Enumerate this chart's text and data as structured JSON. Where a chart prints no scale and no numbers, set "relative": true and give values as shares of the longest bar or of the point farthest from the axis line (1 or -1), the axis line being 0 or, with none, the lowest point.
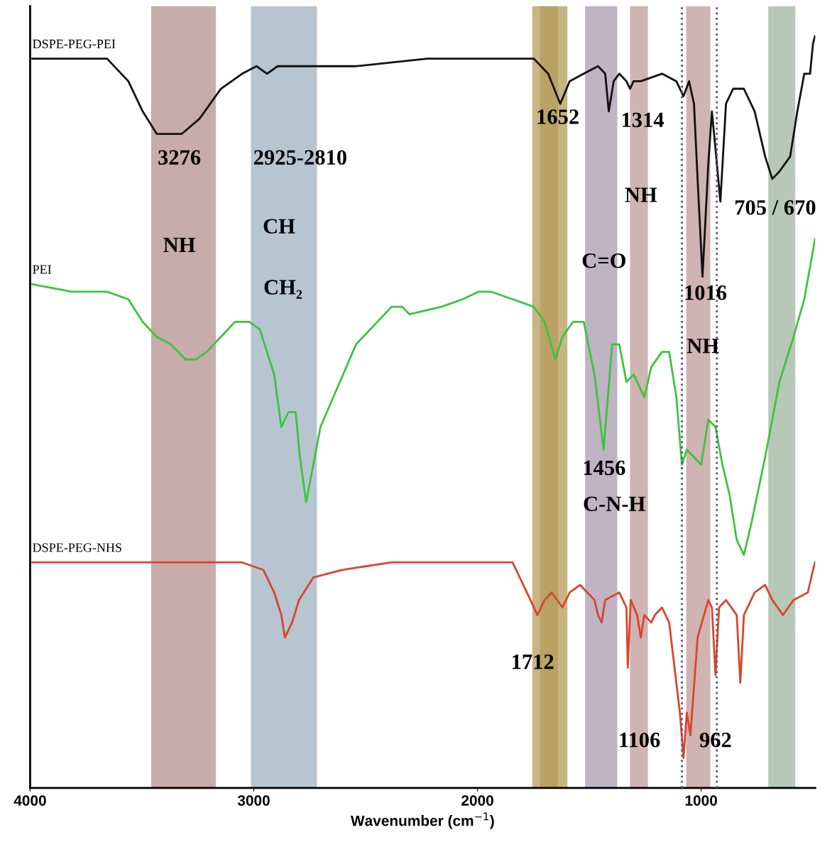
{
  "chart_data": {
    "type": "line",
    "relative": true,
    "xlabel": "Wavenumber (cm$^{−1}$)",
    "xlim": [
      4000,
      490
    ],
    "xticks": [
      4000,
      3000,
      2000,
      1000
    ],
    "grid": false,
    "legend": false,
    "marker": "none",
    "line_style": "solid",
    "series": [
      {
        "name": "DSPE-PEG-PEI",
        "color": "#111111",
        "x": [
          3990,
          3815,
          3656,
          3561,
          3497,
          3434,
          3386,
          3322,
          3243,
          3147,
          3052,
          2988,
          2941,
          2893,
          2798,
          2702,
          2543,
          2225,
          2034,
          1996,
          1907,
          1748,
          1684,
          1630,
          1588,
          1525,
          1461,
          1429,
          1413,
          1391,
          1366,
          1334,
          1318,
          1302,
          1270,
          1175,
          1111,
          1079,
          1054,
          1032,
          1016,
          994,
          968,
          952,
          936,
          914,
          889,
          857,
          809,
          761,
          714,
          682,
          650,
          602,
          570,
          539,
          513,
          500,
          491
        ],
        "values": [
          0.97,
          0.97,
          0.97,
          0.94,
          0.9,
          0.87,
          0.87,
          0.87,
          0.89,
          0.93,
          0.95,
          0.96,
          0.95,
          0.96,
          0.96,
          0.96,
          0.96,
          0.97,
          0.97,
          0.97,
          0.97,
          0.97,
          0.95,
          0.91,
          0.94,
          0.95,
          0.96,
          0.95,
          0.9,
          0.94,
          0.95,
          0.94,
          0.93,
          0.94,
          0.94,
          0.95,
          0.94,
          0.92,
          0.94,
          0.91,
          0.81,
          0.68,
          0.83,
          0.9,
          0.85,
          0.78,
          0.91,
          0.93,
          0.93,
          0.9,
          0.84,
          0.81,
          0.82,
          0.84,
          0.9,
          0.95,
          0.95,
          0.99,
          1.0
        ]
      },
      {
        "name": "PEI",
        "color": "#3ec23e",
        "x": [
          3990,
          3815,
          3723,
          3656,
          3561,
          3497,
          3434,
          3370,
          3306,
          3259,
          3211,
          3147,
          3084,
          3020,
          2973,
          2909,
          2877,
          2845,
          2813,
          2794,
          2766,
          2702,
          2543,
          2384,
          2336,
          2304,
          2161,
          2066,
          1996,
          1938,
          1843,
          1748,
          1700,
          1652,
          1620,
          1573,
          1525,
          1477,
          1436,
          1398,
          1366,
          1334,
          1302,
          1270,
          1254,
          1223,
          1175,
          1143,
          1111,
          1086,
          1064,
          1032,
          1000,
          968,
          936,
          905,
          873,
          841,
          809,
          777,
          714,
          650,
          587,
          539,
          491
        ],
        "values": [
          0.67,
          0.66,
          0.66,
          0.66,
          0.65,
          0.62,
          0.6,
          0.59,
          0.57,
          0.57,
          0.58,
          0.6,
          0.62,
          0.62,
          0.61,
          0.55,
          0.48,
          0.5,
          0.5,
          0.44,
          0.38,
          0.48,
          0.59,
          0.64,
          0.64,
          0.63,
          0.64,
          0.65,
          0.66,
          0.66,
          0.65,
          0.64,
          0.62,
          0.57,
          0.6,
          0.62,
          0.62,
          0.55,
          0.45,
          0.59,
          0.59,
          0.54,
          0.55,
          0.53,
          0.52,
          0.56,
          0.58,
          0.58,
          0.52,
          0.43,
          0.45,
          0.44,
          0.43,
          0.49,
          0.48,
          0.43,
          0.39,
          0.33,
          0.31,
          0.35,
          0.44,
          0.54,
          0.6,
          0.65,
          0.73
        ]
      },
      {
        "name": "DSPE-PEG-NHS",
        "color": "#d9452b",
        "x": [
          3990,
          3656,
          3338,
          3179,
          3052,
          2957,
          2909,
          2877,
          2861,
          2829,
          2798,
          2734,
          2607,
          2384,
          2066,
          1843,
          1779,
          1732,
          1700,
          1668,
          1620,
          1588,
          1541,
          1477,
          1461,
          1445,
          1429,
          1366,
          1334,
          1328,
          1315,
          1286,
          1270,
          1254,
          1223,
          1207,
          1175,
          1143,
          1127,
          1095,
          1079,
          1064,
          1048,
          1016,
          968,
          952,
          936,
          920,
          889,
          841,
          825,
          809,
          761,
          714,
          682,
          634,
          587,
          523,
          500,
          491
        ],
        "values": [
          0.3,
          0.3,
          0.3,
          0.3,
          0.3,
          0.29,
          0.26,
          0.23,
          0.2,
          0.22,
          0.25,
          0.28,
          0.29,
          0.3,
          0.3,
          0.3,
          0.26,
          0.23,
          0.25,
          0.26,
          0.24,
          0.26,
          0.27,
          0.25,
          0.23,
          0.22,
          0.25,
          0.26,
          0.24,
          0.16,
          0.25,
          0.23,
          0.2,
          0.23,
          0.22,
          0.23,
          0.24,
          0.22,
          0.18,
          0.1,
          0.04,
          0.1,
          0.07,
          0.2,
          0.25,
          0.24,
          0.15,
          0.24,
          0.25,
          0.23,
          0.14,
          0.23,
          0.26,
          0.27,
          0.25,
          0.23,
          0.25,
          0.26,
          0.29,
          0.3
        ]
      }
    ],
    "bands": [
      {
        "axis": "x",
        "from": 3459,
        "to": 3170,
        "color": "#b58f8f"
      },
      {
        "axis": "x",
        "from": 3013,
        "to": 2718,
        "color": "#9fb1c2"
      },
      {
        "axis": "x",
        "from": 1720,
        "to": 1598,
        "color": "#b59c5a"
      },
      {
        "axis": "x",
        "from": 1755,
        "to": 1640,
        "color": "#b59c5a"
      },
      {
        "axis": "x",
        "from": 1519,
        "to": 1375,
        "color": "#a89bb0"
      },
      {
        "axis": "x",
        "from": 1318,
        "to": 1238,
        "color": "#c09a9a"
      },
      {
        "axis": "x",
        "from": 1067,
        "to": 959,
        "color": "#c09a9a"
      },
      {
        "axis": "x",
        "from": 700,
        "to": 579,
        "color": "#9fb5a0"
      }
    ],
    "ref_lines": [
      {
        "axis": "x",
        "value": 1086,
        "color": "#555577",
        "line_style": "dotted"
      },
      {
        "axis": "x",
        "value": 930,
        "color": "#555577",
        "line_style": "dotted"
      }
    ],
    "annotations": [
      "3276",
      "2925-2810",
      "NH",
      "CH",
      "CH₂",
      "1652",
      "1314",
      "NH",
      "C=O",
      "705 / 670",
      "1016",
      "NH",
      "1456",
      "C-N-H",
      "1712",
      "1106",
      "962"
    ]
  }
}
